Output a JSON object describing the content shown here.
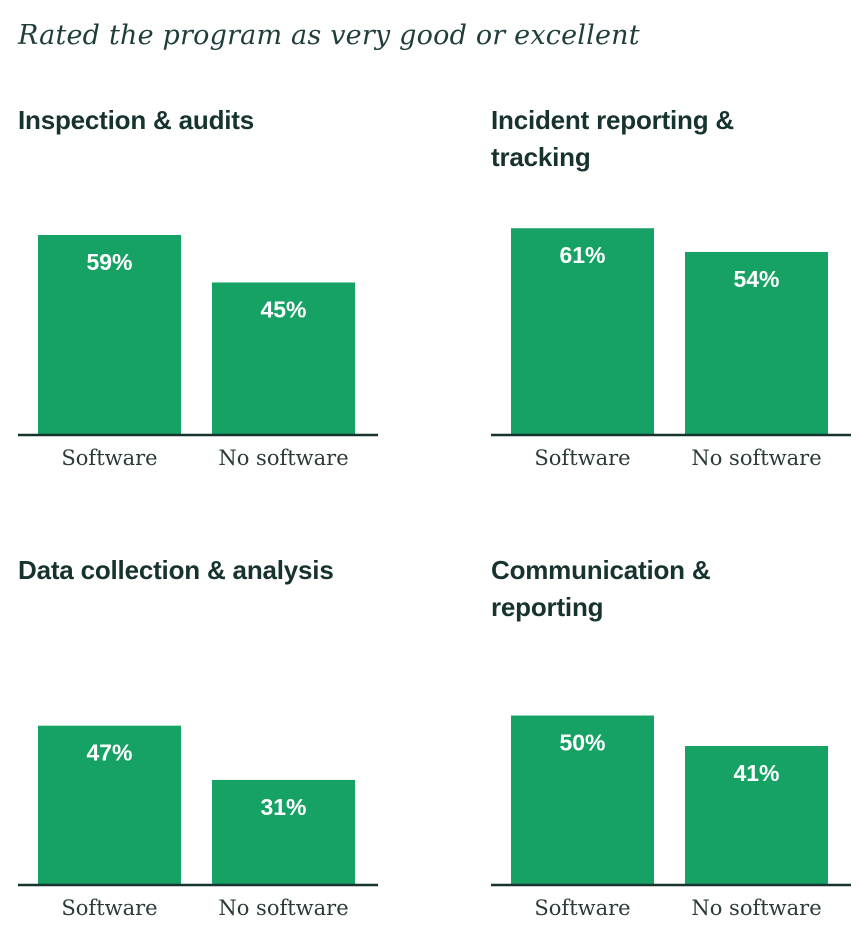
{
  "page": {
    "title": "Rated the program as very good or excellent"
  },
  "colors": {
    "bar": "#17a265",
    "baseline": "#17332f",
    "title": "#1f3d3b"
  },
  "chart_data": [
    {
      "type": "bar",
      "title": "Inspection & audits",
      "categories": [
        "Software",
        "No software"
      ],
      "values": [
        59,
        45
      ],
      "data_labels": [
        "59%",
        "45%"
      ],
      "ylim": [
        0,
        59
      ],
      "grid": false
    },
    {
      "type": "bar",
      "title": "Incident reporting & tracking",
      "categories": [
        "Software",
        "No software"
      ],
      "values": [
        61,
        54
      ],
      "data_labels": [
        "61%",
        "54%"
      ],
      "ylim": [
        0,
        59
      ],
      "grid": false
    },
    {
      "type": "bar",
      "title": "Data collection & analysis",
      "categories": [
        "Software",
        "No software"
      ],
      "values": [
        47,
        31
      ],
      "data_labels": [
        "47%",
        "31%"
      ],
      "ylim": [
        0,
        59
      ],
      "grid": false
    },
    {
      "type": "bar",
      "title": "Communication & reporting",
      "categories": [
        "Software",
        "No software"
      ],
      "values": [
        50,
        41
      ],
      "data_labels": [
        "50%",
        "41%"
      ],
      "ylim": [
        0,
        59
      ],
      "grid": false
    }
  ]
}
